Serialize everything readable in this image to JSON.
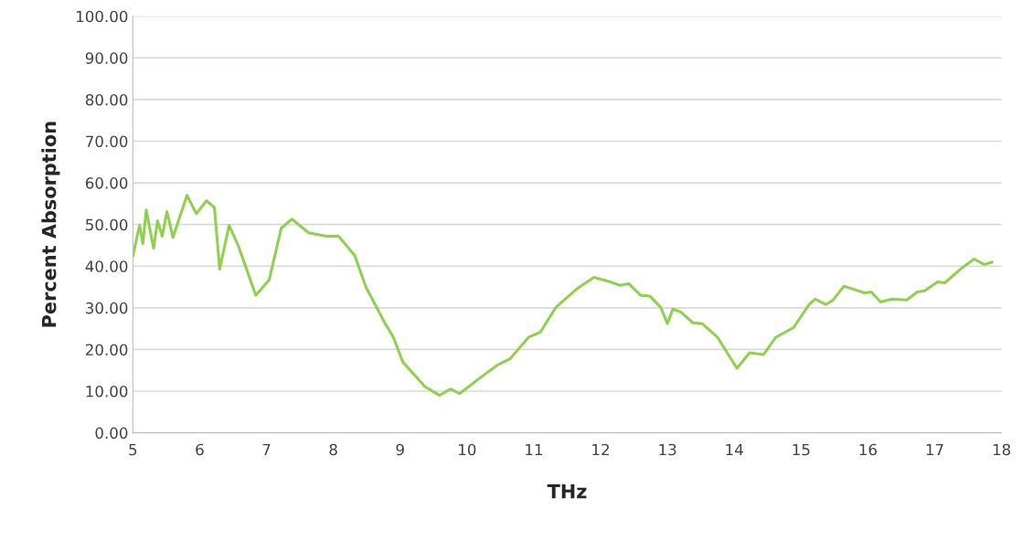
{
  "chart_data": {
    "type": "line",
    "xlabel": "THz",
    "ylabel": "Percent Absorption",
    "xlim": [
      5,
      18
    ],
    "xticks": [
      5,
      6,
      7,
      8,
      9,
      10,
      11,
      12,
      13,
      14,
      15,
      16,
      17,
      18
    ],
    "ylim": [
      0,
      100
    ],
    "yticks": [
      {
        "value": 0,
        "label": "0.00"
      },
      {
        "value": 10,
        "label": "10.00"
      },
      {
        "value": 20,
        "label": "20.00"
      },
      {
        "value": 30,
        "label": "30.00"
      },
      {
        "value": 40,
        "label": "40.00"
      },
      {
        "value": 50,
        "label": "50.00"
      },
      {
        "value": 60,
        "label": "60.00"
      },
      {
        "value": 70,
        "label": "70.00"
      },
      {
        "value": 80,
        "label": "80.00"
      },
      {
        "value": 90,
        "label": "90.00"
      },
      {
        "value": 100,
        "label": "100.00"
      }
    ],
    "grid": "y",
    "marker": "none",
    "line_style": "solid",
    "series": [
      {
        "color": "#8fd14f",
        "x": [
          5.0,
          5.1,
          5.15,
          5.2,
          5.31,
          5.37,
          5.44,
          5.51,
          5.6,
          5.81,
          5.95,
          6.1,
          6.22,
          6.3,
          6.44,
          6.58,
          6.84,
          7.04,
          7.22,
          7.38,
          7.63,
          7.9,
          8.08,
          8.32,
          8.49,
          8.77,
          8.9,
          9.04,
          9.37,
          9.59,
          9.75,
          9.89,
          10.19,
          10.47,
          10.64,
          10.92,
          11.1,
          11.33,
          11.64,
          11.9,
          12.15,
          12.29,
          12.42,
          12.6,
          12.74,
          12.9,
          13.0,
          13.08,
          13.2,
          13.38,
          13.52,
          13.75,
          14.04,
          14.23,
          14.44,
          14.62,
          14.89,
          15.12,
          15.21,
          15.37,
          15.48,
          15.64,
          15.95,
          16.05,
          16.19,
          16.36,
          16.58,
          16.74,
          16.85,
          17.04,
          17.15,
          17.4,
          17.59,
          17.74,
          17.86
        ],
        "values": [
          42.4,
          49.8,
          45.4,
          53.5,
          44.3,
          50.9,
          47.2,
          53.1,
          46.9,
          57.0,
          52.6,
          55.7,
          54.1,
          39.3,
          49.8,
          44.8,
          33.0,
          36.7,
          49.1,
          51.3,
          48.0,
          47.2,
          47.2,
          42.6,
          34.9,
          26.4,
          22.9,
          17.0,
          11.1,
          9.0,
          10.5,
          9.4,
          13.1,
          16.4,
          17.7,
          22.9,
          24.2,
          30.1,
          34.5,
          37.3,
          36.2,
          35.4,
          35.8,
          33.0,
          32.8,
          30.1,
          26.2,
          29.7,
          29.0,
          26.4,
          26.2,
          22.9,
          15.5,
          19.2,
          18.8,
          22.9,
          25.3,
          30.8,
          32.1,
          30.8,
          31.9,
          35.2,
          33.6,
          33.8,
          31.4,
          32.1,
          31.9,
          33.8,
          34.1,
          36.2,
          36.0,
          39.5,
          41.7,
          40.4,
          41.0
        ]
      }
    ]
  }
}
